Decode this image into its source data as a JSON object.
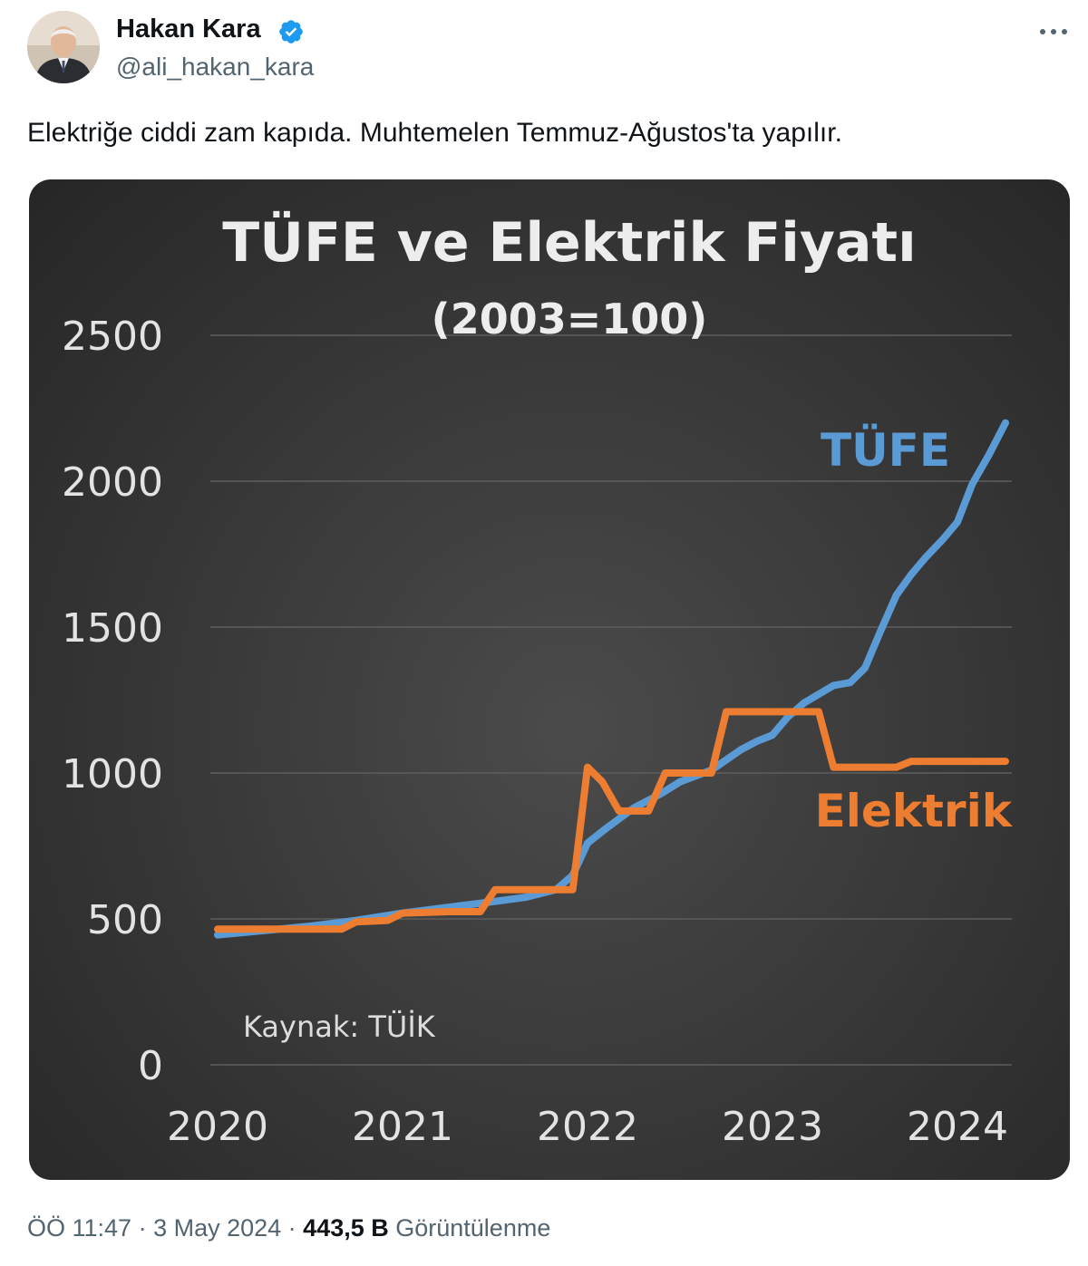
{
  "author": {
    "name": "Hakan Kara",
    "handle": "@ali_hakan_kara",
    "verified": true
  },
  "tweet": {
    "text": "Elektriğe ciddi zam kapıda. Muhtemelen Temmuz-Ağustos'ta yapılır."
  },
  "footer": {
    "time": "ÖÖ 11:47",
    "sep1": " · ",
    "date": "3 May 2024",
    "sep2": " · ",
    "views_count": "443,5 B",
    "views_label": " Görüntülenme"
  },
  "icons": {
    "more": "more-horizontal-icon",
    "verified": "verified-badge-icon"
  },
  "colors": {
    "verified_blue": "#1d9bf0",
    "tufe": "#5b9bd5",
    "elektrik": "#ed7d31",
    "chart_bg": "#3a3a3a",
    "chart_text": "#ededed"
  },
  "chart_data": {
    "type": "line",
    "title": "TÜFE ve Elektrik Fiyatı",
    "subtitle": "(2003=100)",
    "source_note": "Kaynak: TÜİK",
    "xlim": [
      2020,
      2024.3
    ],
    "ylim": [
      0,
      2500
    ],
    "x_ticks": [
      2020,
      2021,
      2022,
      2023,
      2024
    ],
    "x_tick_labels": [
      "2020",
      "2021",
      "2022",
      "2023",
      "2024"
    ],
    "y_ticks": [
      0,
      500,
      1000,
      1500,
      2000,
      2500
    ],
    "y_tick_labels": [
      "0",
      "500",
      "1000",
      "1500",
      "2000",
      "2500"
    ],
    "grid": true,
    "legend": "inline labels",
    "series": [
      {
        "name": "TÜFE",
        "color": "#5b9bd5",
        "points": [
          [
            2020.0,
            445
          ],
          [
            2020.25,
            460
          ],
          [
            2020.5,
            475
          ],
          [
            2020.75,
            495
          ],
          [
            2021.0,
            520
          ],
          [
            2021.25,
            540
          ],
          [
            2021.5,
            560
          ],
          [
            2021.67,
            575
          ],
          [
            2021.83,
            600
          ],
          [
            2021.92,
            650
          ],
          [
            2022.0,
            760
          ],
          [
            2022.1,
            810
          ],
          [
            2022.25,
            880
          ],
          [
            2022.4,
            930
          ],
          [
            2022.5,
            970
          ],
          [
            2022.67,
            1010
          ],
          [
            2022.83,
            1080
          ],
          [
            2022.92,
            1110
          ],
          [
            2023.0,
            1130
          ],
          [
            2023.08,
            1190
          ],
          [
            2023.17,
            1240
          ],
          [
            2023.25,
            1270
          ],
          [
            2023.33,
            1300
          ],
          [
            2023.42,
            1310
          ],
          [
            2023.5,
            1360
          ],
          [
            2023.58,
            1480
          ],
          [
            2023.67,
            1610
          ],
          [
            2023.75,
            1680
          ],
          [
            2023.83,
            1740
          ],
          [
            2023.92,
            1800
          ],
          [
            2024.0,
            1860
          ],
          [
            2024.08,
            1990
          ],
          [
            2024.17,
            2090
          ],
          [
            2024.26,
            2200
          ]
        ]
      },
      {
        "name": "Elektrik",
        "color": "#ed7d31",
        "points": [
          [
            2020.0,
            465
          ],
          [
            2020.25,
            465
          ],
          [
            2020.5,
            465
          ],
          [
            2020.67,
            465
          ],
          [
            2020.75,
            490
          ],
          [
            2020.92,
            495
          ],
          [
            2021.0,
            520
          ],
          [
            2021.25,
            525
          ],
          [
            2021.42,
            525
          ],
          [
            2021.5,
            600
          ],
          [
            2021.75,
            600
          ],
          [
            2021.92,
            600
          ],
          [
            2022.0,
            1020
          ],
          [
            2022.08,
            970
          ],
          [
            2022.17,
            870
          ],
          [
            2022.33,
            870
          ],
          [
            2022.42,
            1000
          ],
          [
            2022.58,
            1000
          ],
          [
            2022.67,
            1000
          ],
          [
            2022.75,
            1210
          ],
          [
            2022.92,
            1210
          ],
          [
            2023.08,
            1210
          ],
          [
            2023.17,
            1210
          ],
          [
            2023.25,
            1210
          ],
          [
            2023.33,
            1020
          ],
          [
            2023.5,
            1020
          ],
          [
            2023.67,
            1020
          ],
          [
            2023.75,
            1040
          ],
          [
            2024.0,
            1040
          ],
          [
            2024.26,
            1040
          ]
        ]
      }
    ]
  }
}
